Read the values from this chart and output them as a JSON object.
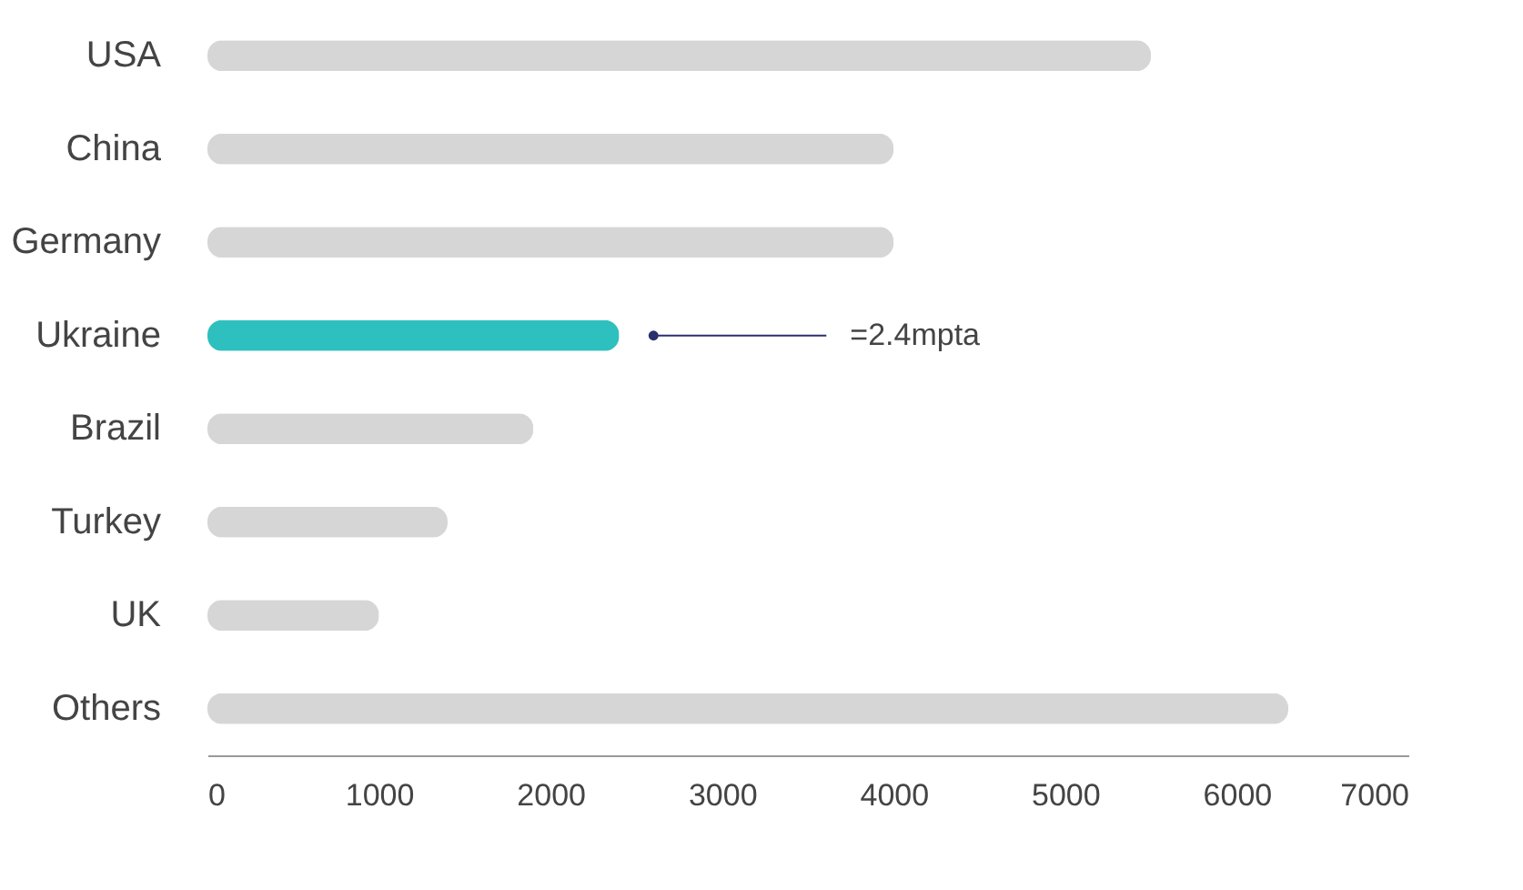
{
  "chart_data": {
    "type": "bar",
    "orientation": "horizontal",
    "categories": [
      "USA",
      "China",
      "Germany",
      "Ukraine",
      "Brazil",
      "Turkey",
      "UK",
      "Others"
    ],
    "values": [
      5500,
      4000,
      4000,
      2400,
      1900,
      1400,
      1000,
      6300
    ],
    "colors": [
      "#d6d6d6",
      "#d6d6d6",
      "#d6d6d6",
      "#2ebfbf",
      "#d6d6d6",
      "#d6d6d6",
      "#d6d6d6",
      "#d6d6d6"
    ],
    "xlim": [
      0,
      7000
    ],
    "xticks": [
      0,
      1000,
      2000,
      3000,
      4000,
      5000,
      6000,
      7000
    ],
    "grid": false,
    "annotations": [
      {
        "text": "=2.4mpta",
        "x": 2600,
        "y": "Ukraine"
      }
    ]
  }
}
